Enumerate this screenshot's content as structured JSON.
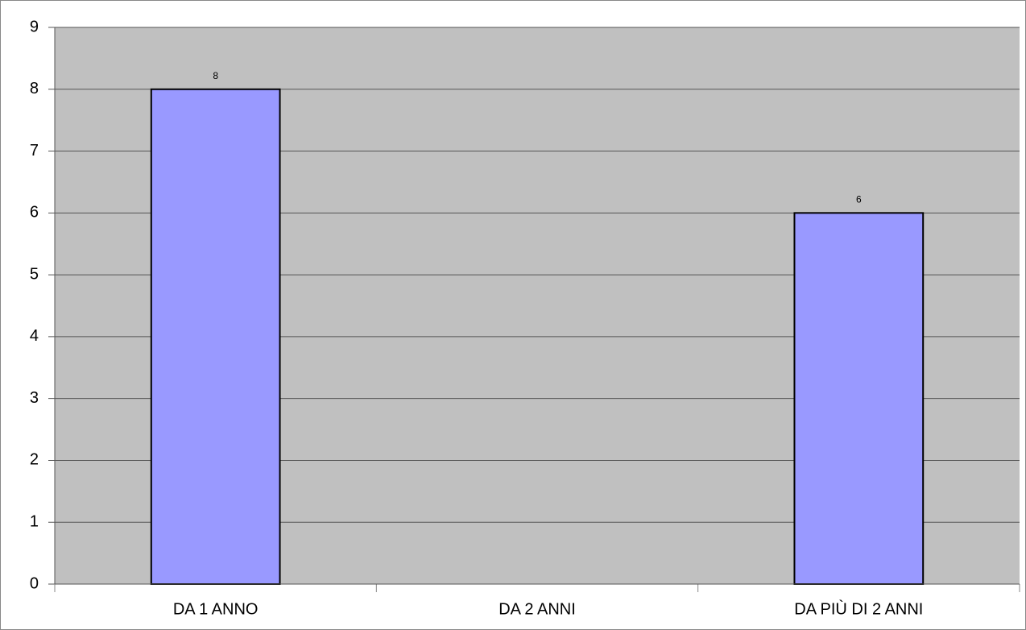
{
  "chart_data": {
    "type": "bar",
    "categories": [
      "DA 1 ANNO",
      "DA 2 ANNI",
      "DA PIÙ DI 2 ANNI"
    ],
    "values": [
      8,
      null,
      6
    ],
    "color": "#9999ff",
    "ylim": [
      0,
      9
    ],
    "yticks": [
      0,
      1,
      2,
      3,
      4,
      5,
      6,
      7,
      8,
      9
    ],
    "grid": true
  }
}
